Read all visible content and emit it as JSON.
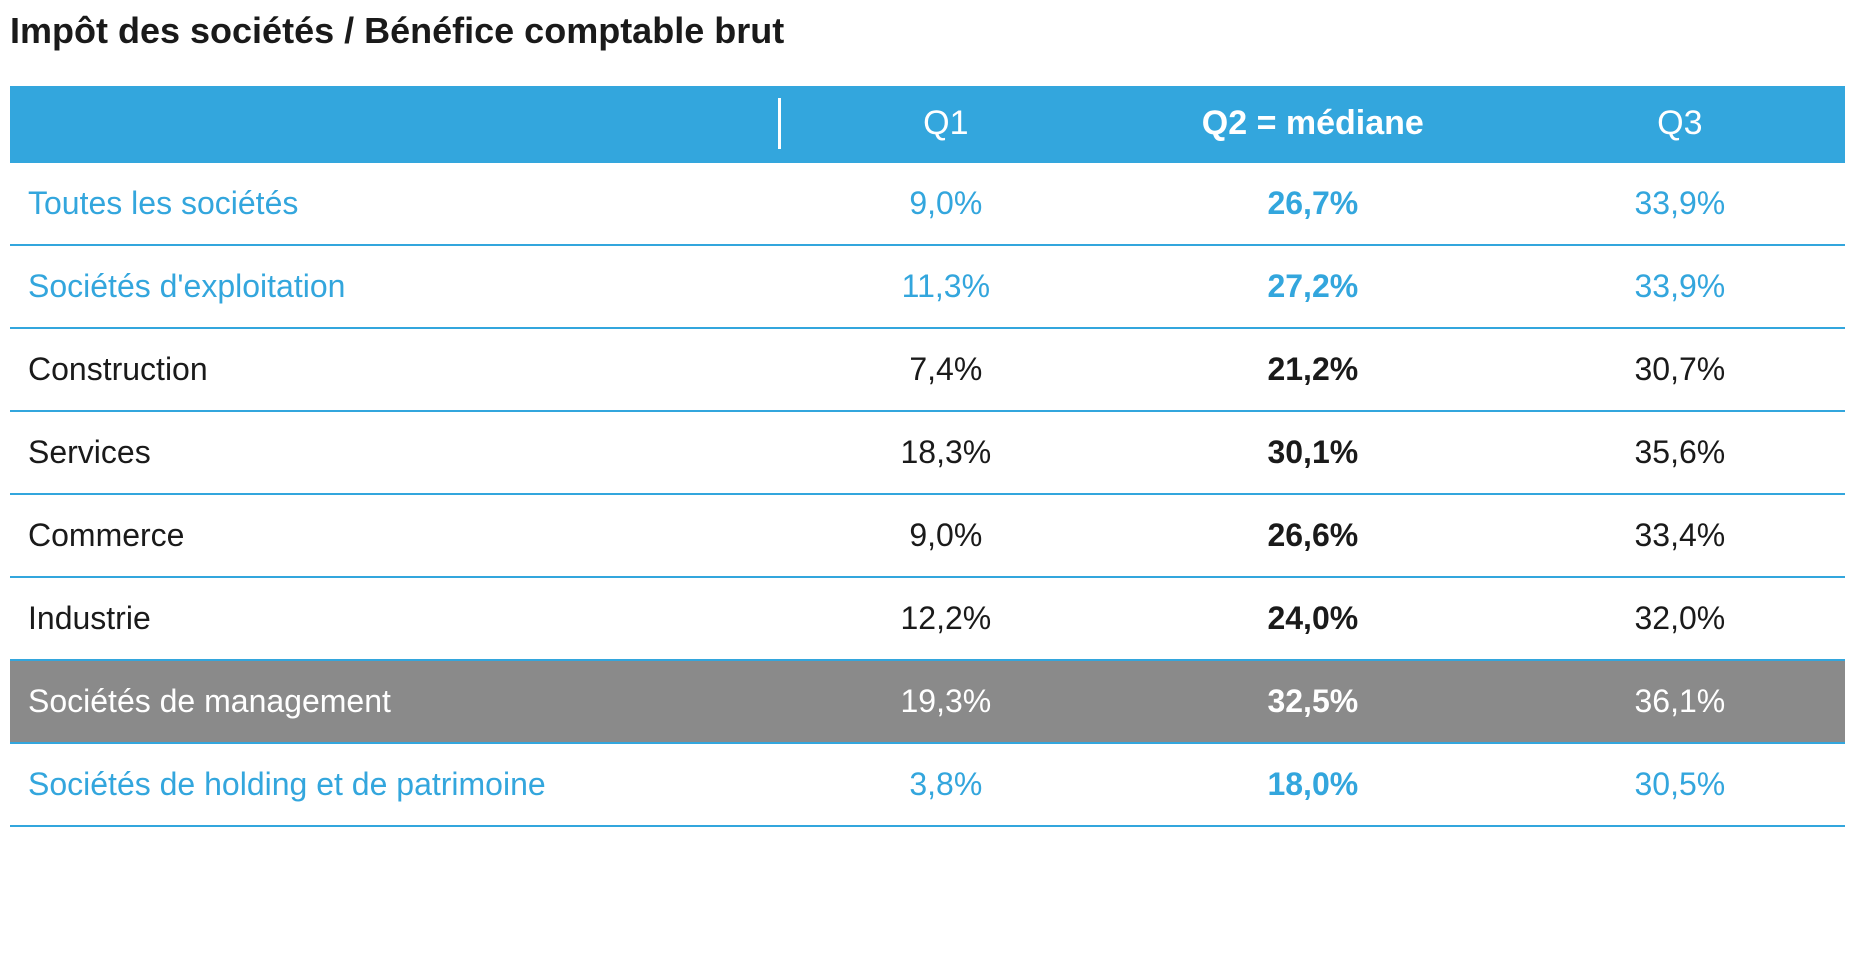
{
  "title": "Impôt des sociétés / Bénéfice comptable brut",
  "type": "table",
  "colors": {
    "header_bg": "#33a6dd",
    "header_text": "#ffffff",
    "accent_text": "#33a6dd",
    "plain_text": "#1a1a1a",
    "shaded_bg": "#8a8a8a",
    "shaded_text": "#ffffff",
    "border": "#33a6dd",
    "background": "#ffffff"
  },
  "typography": {
    "title_fontsize": 36,
    "title_weight": "bold",
    "header_fontsize": 34,
    "cell_fontsize": 32,
    "q2_weight": "bold"
  },
  "columns": [
    {
      "key": "label",
      "header": "",
      "align": "left",
      "width_pct": 42
    },
    {
      "key": "q1",
      "header": "Q1",
      "align": "center",
      "width_pct": 18
    },
    {
      "key": "q2",
      "header": "Q2 = médiane",
      "align": "center",
      "width_pct": 22,
      "bold": true
    },
    {
      "key": "q3",
      "header": "Q3",
      "align": "center",
      "width_pct": 18
    }
  ],
  "rows": [
    {
      "style": "accent",
      "label": "Toutes les sociétés",
      "q1": "9,0%",
      "q2": "26,7%",
      "q3": "33,9%"
    },
    {
      "style": "accent",
      "label": "Sociétés d'exploitation",
      "q1": "11,3%",
      "q2": "27,2%",
      "q3": "33,9%"
    },
    {
      "style": "plain",
      "label": "Construction",
      "q1": "7,4%",
      "q2": "21,2%",
      "q3": "30,7%"
    },
    {
      "style": "plain",
      "label": "Services",
      "q1": "18,3%",
      "q2": "30,1%",
      "q3": "35,6%"
    },
    {
      "style": "plain",
      "label": "Commerce",
      "q1": "9,0%",
      "q2": "26,6%",
      "q3": "33,4%"
    },
    {
      "style": "plain",
      "label": "Industrie",
      "q1": "12,2%",
      "q2": "24,0%",
      "q3": "32,0%"
    },
    {
      "style": "shaded",
      "label": "Sociétés de management",
      "q1": "19,3%",
      "q2": "32,5%",
      "q3": "36,1%"
    },
    {
      "style": "accent",
      "label": "Sociétés de holding et de patrimoine",
      "q1": "3,8%",
      "q2": "18,0%",
      "q3": "30,5%"
    }
  ]
}
